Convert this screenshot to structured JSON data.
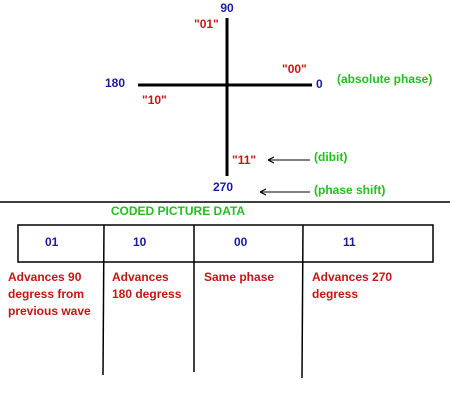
{
  "phase_diagram": {
    "angles": {
      "top": "90",
      "right": "0",
      "left": "180",
      "bottom": "270"
    },
    "dibits": {
      "top": "\"01\"",
      "right": "\"00\"",
      "left": "\"10\"",
      "bottom": "\"11\""
    },
    "notes": {
      "absolute": "(absolute phase)",
      "dibit": "(dibit)",
      "shift": "(phase shift)"
    }
  },
  "coded_data": {
    "title": "CODED PICTURE DATA",
    "cells": [
      "01",
      "10",
      "00",
      "11"
    ],
    "descriptions": [
      [
        "Advances 90",
        "degress from",
        "previous wave"
      ],
      [
        "Advances",
        "180 degress"
      ],
      [
        "Same phase"
      ],
      [
        "Advances 270",
        "degress"
      ]
    ]
  }
}
